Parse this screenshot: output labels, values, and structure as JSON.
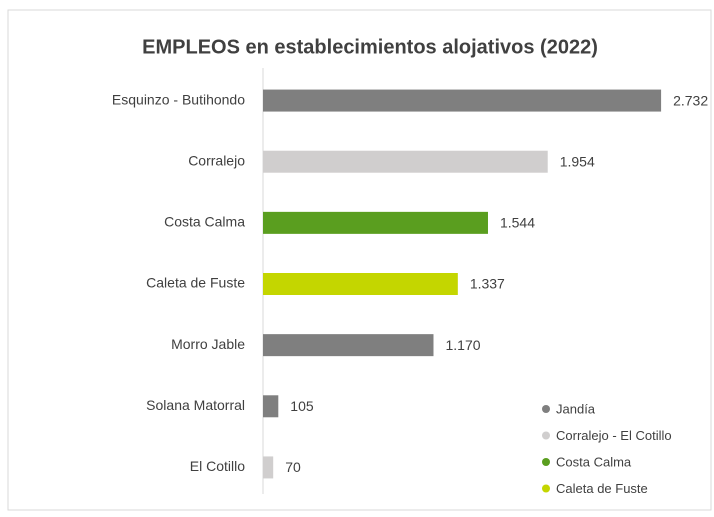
{
  "chart_data": {
    "type": "bar",
    "orientation": "horizontal",
    "title": "EMPLEOS en establecimientos alojativos (2022)",
    "categories": [
      "Esquinzo - Butihondo",
      "Corralejo",
      "Costa Calma",
      "Caleta de Fuste",
      "Morro Jable",
      "Solana Matorral",
      "El Cotillo"
    ],
    "series": [
      {
        "name": "Jandía",
        "color": "#7f7f7f",
        "values": [
          2732,
          null,
          null,
          null,
          1170,
          105,
          null
        ],
        "value_labels": [
          "2.732",
          null,
          null,
          null,
          "1.170",
          "105",
          null
        ]
      },
      {
        "name": "Corralejo - El Cotillo",
        "color": "#d0cece",
        "values": [
          null,
          1954,
          null,
          null,
          null,
          null,
          70
        ],
        "value_labels": [
          null,
          "1.954",
          null,
          null,
          null,
          null,
          "70"
        ]
      },
      {
        "name": "Costa Calma",
        "color": "#5a9e1f",
        "values": [
          null,
          null,
          1544,
          null,
          null,
          null,
          null
        ],
        "value_labels": [
          null,
          null,
          "1.544",
          null,
          null,
          null,
          null
        ]
      },
      {
        "name": "Caleta de Fuste",
        "color": "#c4d600",
        "values": [
          null,
          null,
          null,
          1337,
          null,
          null,
          null
        ],
        "value_labels": [
          null,
          null,
          null,
          "1.337",
          null,
          null,
          null
        ]
      }
    ],
    "xlim": [
      0,
      2800
    ],
    "legend": "bottom-right"
  }
}
